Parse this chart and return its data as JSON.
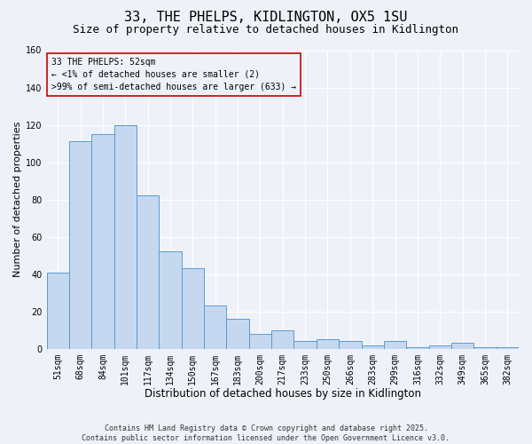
{
  "title": "33, THE PHELPS, KIDLINGTON, OX5 1SU",
  "subtitle": "Size of property relative to detached houses in Kidlington",
  "xlabel": "Distribution of detached houses by size in Kidlington",
  "ylabel": "Number of detached properties",
  "categories": [
    "51sqm",
    "68sqm",
    "84sqm",
    "101sqm",
    "117sqm",
    "134sqm",
    "150sqm",
    "167sqm",
    "183sqm",
    "200sqm",
    "217sqm",
    "233sqm",
    "250sqm",
    "266sqm",
    "283sqm",
    "299sqm",
    "316sqm",
    "332sqm",
    "349sqm",
    "365sqm",
    "382sqm"
  ],
  "values": [
    41,
    111,
    115,
    120,
    82,
    52,
    43,
    23,
    16,
    8,
    10,
    4,
    5,
    4,
    2,
    4,
    1,
    2,
    3,
    1,
    1
  ],
  "bar_color": "#c5d8ef",
  "bar_edge_color": "#5b9bd5",
  "annotation_box_color": "#cc0000",
  "annotation_line1": "33 THE PHELPS: 52sqm",
  "annotation_line2": "← <1% of detached houses are smaller (2)",
  "annotation_line3": ">99% of semi-detached houses are larger (633) →",
  "ylim": [
    0,
    160
  ],
  "yticks": [
    0,
    20,
    40,
    60,
    80,
    100,
    120,
    140,
    160
  ],
  "background_color": "#eef2f8",
  "grid_color": "#ffffff",
  "footer_line1": "Contains HM Land Registry data © Crown copyright and database right 2025.",
  "footer_line2": "Contains public sector information licensed under the Open Government Licence v3.0.",
  "title_fontsize": 11,
  "subtitle_fontsize": 9,
  "xlabel_fontsize": 8.5,
  "ylabel_fontsize": 8,
  "tick_fontsize": 7,
  "annotation_fontsize": 7,
  "footer_fontsize": 6
}
